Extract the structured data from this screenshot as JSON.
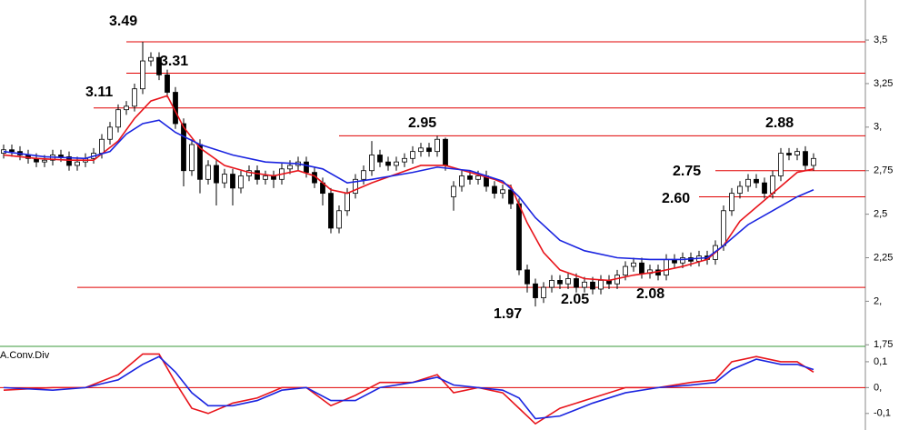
{
  "chart_data": [
    {
      "type": "candlestick",
      "open": [
        2.85,
        2.87,
        2.86,
        2.84,
        2.82,
        2.8,
        2.81,
        2.84,
        2.83,
        2.78,
        2.8,
        2.82,
        2.85,
        2.93,
        3.0,
        3.1,
        3.12,
        3.22,
        3.38,
        3.4,
        3.3,
        3.2,
        3.02,
        2.75,
        2.9,
        2.7,
        2.78,
        2.68,
        2.73,
        2.65,
        2.72,
        2.75,
        2.7,
        2.72,
        2.7,
        2.76,
        2.78,
        2.8,
        2.74,
        2.68,
        2.62,
        2.42,
        2.52,
        2.62,
        2.7,
        2.75,
        2.84,
        2.8,
        2.78,
        2.8,
        2.82,
        2.86,
        2.88,
        2.86,
        2.93,
        2.6,
        2.66,
        2.72,
        2.7,
        2.72,
        2.66,
        2.62,
        2.64,
        2.56,
        2.18,
        2.1,
        2.02,
        2.08,
        2.12,
        2.1,
        2.13,
        2.08,
        2.11,
        2.07,
        2.12,
        2.1,
        2.15,
        2.2,
        2.22,
        2.16,
        2.18,
        2.15,
        2.24,
        2.22,
        2.25,
        2.23,
        2.26,
        2.24,
        2.32,
        2.52,
        2.62,
        2.66,
        2.7,
        2.68,
        2.62,
        2.72,
        2.85,
        2.84,
        2.86,
        2.78
      ],
      "high": [
        2.9,
        2.9,
        2.89,
        2.87,
        2.85,
        2.84,
        2.87,
        2.87,
        2.86,
        2.83,
        2.85,
        2.88,
        2.96,
        3.03,
        3.13,
        3.15,
        3.25,
        3.49,
        3.43,
        3.43,
        3.33,
        3.23,
        3.05,
        2.93,
        2.93,
        2.81,
        2.81,
        2.76,
        2.76,
        2.75,
        2.78,
        2.78,
        2.75,
        2.75,
        2.79,
        2.81,
        2.83,
        2.83,
        2.77,
        2.71,
        2.65,
        2.55,
        2.65,
        2.73,
        2.78,
        2.92,
        2.87,
        2.83,
        2.83,
        2.85,
        2.89,
        2.91,
        2.91,
        2.95,
        2.94,
        2.69,
        2.75,
        2.75,
        2.75,
        2.75,
        2.69,
        2.67,
        2.67,
        2.59,
        2.21,
        2.13,
        2.11,
        2.15,
        2.15,
        2.16,
        2.16,
        2.14,
        2.14,
        2.15,
        2.15,
        2.18,
        2.23,
        2.25,
        2.25,
        2.21,
        2.21,
        2.27,
        2.27,
        2.28,
        2.28,
        2.29,
        2.29,
        2.35,
        2.55,
        2.65,
        2.69,
        2.73,
        2.73,
        2.71,
        2.75,
        2.88,
        2.88,
        2.88,
        2.89,
        2.85
      ],
      "low": [
        2.82,
        2.83,
        2.81,
        2.79,
        2.77,
        2.77,
        2.78,
        2.8,
        2.75,
        2.75,
        2.77,
        2.79,
        2.82,
        2.9,
        2.97,
        3.07,
        3.09,
        3.19,
        3.35,
        3.27,
        3.17,
        2.99,
        2.66,
        2.72,
        2.62,
        2.67,
        2.55,
        2.65,
        2.55,
        2.62,
        2.69,
        2.67,
        2.67,
        2.65,
        2.67,
        2.73,
        2.75,
        2.71,
        2.65,
        2.55,
        2.39,
        2.39,
        2.49,
        2.59,
        2.67,
        2.72,
        2.77,
        2.75,
        2.75,
        2.77,
        2.79,
        2.83,
        2.83,
        2.83,
        2.75,
        2.52,
        2.63,
        2.67,
        2.67,
        2.63,
        2.59,
        2.59,
        2.53,
        2.15,
        2.05,
        1.97,
        1.99,
        2.05,
        2.07,
        2.07,
        2.05,
        2.05,
        2.04,
        2.04,
        2.07,
        2.07,
        2.12,
        2.17,
        2.13,
        2.13,
        2.12,
        2.12,
        2.19,
        2.19,
        2.2,
        2.2,
        2.21,
        2.21,
        2.29,
        2.49,
        2.59,
        2.63,
        2.65,
        2.59,
        2.59,
        2.69,
        2.81,
        2.81,
        2.75,
        2.75
      ],
      "close": [
        2.87,
        2.86,
        2.84,
        2.82,
        2.8,
        2.81,
        2.84,
        2.83,
        2.78,
        2.8,
        2.82,
        2.85,
        2.93,
        3.0,
        3.1,
        3.12,
        3.22,
        3.38,
        3.4,
        3.3,
        3.2,
        3.02,
        2.75,
        2.9,
        2.7,
        2.78,
        2.68,
        2.73,
        2.65,
        2.72,
        2.75,
        2.7,
        2.72,
        2.7,
        2.76,
        2.78,
        2.8,
        2.74,
        2.68,
        2.62,
        2.42,
        2.52,
        2.62,
        2.7,
        2.75,
        2.84,
        2.8,
        2.78,
        2.8,
        2.82,
        2.86,
        2.88,
        2.86,
        2.93,
        2.78,
        2.66,
        2.72,
        2.7,
        2.72,
        2.66,
        2.62,
        2.64,
        2.56,
        2.18,
        2.1,
        2.02,
        2.08,
        2.12,
        2.1,
        2.13,
        2.08,
        2.11,
        2.07,
        2.12,
        2.1,
        2.15,
        2.2,
        2.22,
        2.16,
        2.18,
        2.15,
        2.24,
        2.22,
        2.25,
        2.23,
        2.26,
        2.24,
        2.32,
        2.52,
        2.62,
        2.66,
        2.7,
        2.68,
        2.62,
        2.72,
        2.85,
        2.84,
        2.86,
        2.78,
        2.82
      ],
      "series": [
        {
          "color": "#e8141b",
          "x": [
            0,
            4,
            8,
            11,
            14,
            16,
            18,
            20,
            22,
            24,
            27,
            30,
            33,
            36,
            38,
            40,
            42,
            45,
            48,
            51,
            54,
            57,
            60,
            62,
            64,
            66,
            68,
            71,
            74,
            77,
            80,
            83,
            86,
            88,
            90,
            93,
            95,
            97,
            99
          ],
          "values": [
            2.84,
            2.82,
            2.81,
            2.81,
            2.92,
            3.05,
            3.15,
            3.18,
            3.0,
            2.88,
            2.78,
            2.74,
            2.72,
            2.75,
            2.72,
            2.64,
            2.62,
            2.68,
            2.73,
            2.78,
            2.78,
            2.74,
            2.7,
            2.66,
            2.45,
            2.28,
            2.18,
            2.13,
            2.12,
            2.15,
            2.17,
            2.2,
            2.24,
            2.32,
            2.46,
            2.58,
            2.66,
            2.74,
            2.76
          ]
        },
        {
          "color": "#1a24e0",
          "x": [
            0,
            5,
            10,
            13,
            15,
            17,
            19,
            21,
            24,
            28,
            32,
            36,
            39,
            42,
            45,
            50,
            53,
            57,
            61,
            63,
            65,
            68,
            71,
            75,
            79,
            83,
            86,
            88,
            91,
            94,
            97,
            99
          ],
          "values": [
            2.86,
            2.83,
            2.82,
            2.86,
            2.96,
            3.02,
            3.04,
            2.97,
            2.9,
            2.84,
            2.8,
            2.79,
            2.76,
            2.68,
            2.7,
            2.74,
            2.77,
            2.75,
            2.69,
            2.6,
            2.48,
            2.35,
            2.29,
            2.25,
            2.24,
            2.24,
            2.25,
            2.32,
            2.44,
            2.52,
            2.6,
            2.64
          ]
        }
      ],
      "levels": [
        {
          "value": 3.49,
          "label": "3.49",
          "start": 15
        },
        {
          "value": 3.31,
          "label": "3.31",
          "start": 15
        },
        {
          "value": 3.11,
          "label": "3.11",
          "start": 11
        },
        {
          "value": 2.95,
          "label": "2.95",
          "start": 41
        },
        {
          "value": 2.75,
          "label": "2.75",
          "start": 87
        },
        {
          "value": 2.6,
          "label": "2.60",
          "start": 85
        },
        {
          "value": 2.08,
          "label": "2.08",
          "start": 9
        }
      ],
      "annotations": [
        {
          "value": 2.88,
          "label": "2.88"
        },
        {
          "value": 2.05,
          "label": "2.05"
        },
        {
          "value": 1.97,
          "label": "1.97"
        }
      ],
      "level_color": "#e00000",
      "ylim": [
        1.741,
        3.73
      ],
      "yticks": [
        {
          "value": 3.5,
          "label": "3,5"
        },
        {
          "value": 3.25,
          "label": "3,25"
        },
        {
          "value": 3,
          "label": "3,"
        },
        {
          "value": 2.75,
          "label": "2,75"
        },
        {
          "value": 2.5,
          "label": "2,5"
        },
        {
          "value": 2.25,
          "label": "2,25"
        },
        {
          "value": 2,
          "label": "2,"
        },
        {
          "value": 1.75,
          "label": "1,75"
        }
      ]
    },
    {
      "type": "line",
      "title": "A.Conv.Div",
      "series": [
        {
          "color": "#e8141b",
          "x": [
            0,
            6,
            10,
            14,
            17,
            19,
            21,
            23,
            25,
            28,
            31,
            34,
            37,
            40,
            43,
            46,
            50,
            53,
            55,
            58,
            61,
            63,
            65,
            68,
            72,
            76,
            80,
            84,
            87,
            89,
            92,
            95,
            97,
            99
          ],
          "values": [
            -0.01,
            0.0,
            0.0,
            0.05,
            0.13,
            0.13,
            0.02,
            -0.08,
            -0.1,
            -0.06,
            -0.04,
            0.0,
            0.0,
            -0.07,
            -0.03,
            0.02,
            0.02,
            0.05,
            -0.02,
            0.0,
            -0.02,
            -0.08,
            -0.14,
            -0.08,
            -0.04,
            0.0,
            0.0,
            0.02,
            0.03,
            0.1,
            0.12,
            0.1,
            0.1,
            0.06
          ]
        },
        {
          "color": "#1a24e0",
          "x": [
            0,
            6,
            10,
            14,
            17,
            19,
            21,
            23,
            25,
            28,
            31,
            34,
            37,
            40,
            43,
            46,
            50,
            53,
            55,
            58,
            61,
            63,
            65,
            68,
            72,
            76,
            80,
            84,
            87,
            89,
            92,
            95,
            97,
            99
          ],
          "values": [
            0.0,
            -0.01,
            0.0,
            0.03,
            0.09,
            0.12,
            0.06,
            -0.02,
            -0.07,
            -0.07,
            -0.05,
            -0.01,
            0.0,
            -0.05,
            -0.05,
            0.0,
            0.02,
            0.04,
            0.01,
            0.0,
            -0.01,
            -0.04,
            -0.12,
            -0.11,
            -0.06,
            -0.02,
            0.0,
            0.01,
            0.02,
            0.07,
            0.11,
            0.09,
            0.09,
            0.07
          ]
        }
      ],
      "reference_line": {
        "value": 0,
        "color": "#e00000"
      },
      "ylim": [
        -0.164,
        0.156
      ],
      "yticks": [
        {
          "value": 0.1,
          "label": "0,1"
        },
        {
          "value": 0,
          "label": "0,"
        },
        {
          "value": -0.1,
          "label": "-0,1"
        }
      ]
    }
  ]
}
